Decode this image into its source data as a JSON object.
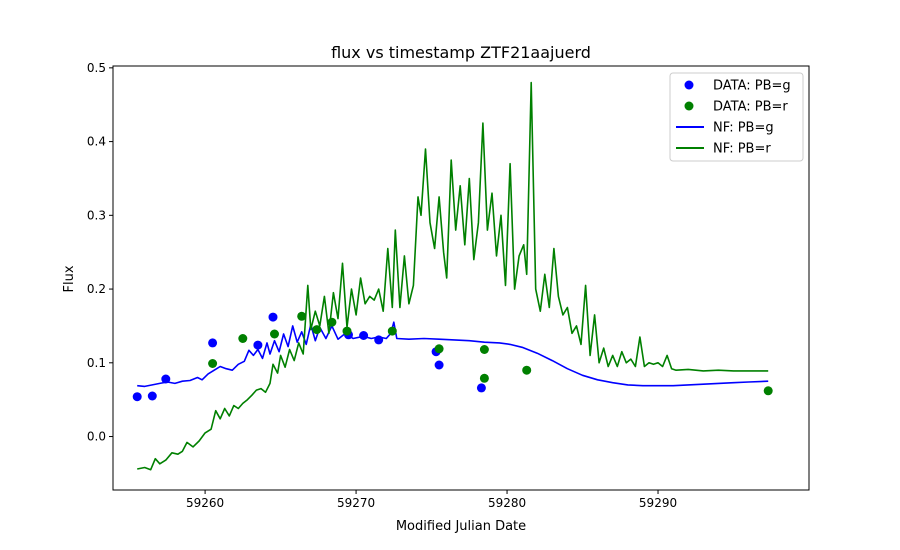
{
  "chart_data": {
    "type": "line",
    "title": "flux vs timestamp ZTF21aajuerd",
    "xlabel": "Modified Julian Date",
    "ylabel": "Flux",
    "xlim": [
      59253.9,
      59300.0
    ],
    "ylim": [
      -0.0725,
      0.5025
    ],
    "xticks": [
      59260,
      59270,
      59280,
      59290
    ],
    "yticks": [
      0.0,
      0.1,
      0.2,
      0.3,
      0.4,
      0.5
    ],
    "xtick_labels": [
      "59260",
      "59270",
      "59280",
      "59290"
    ],
    "ytick_labels": [
      "0.0",
      "0.1",
      "0.2",
      "0.3",
      "0.4",
      "0.5"
    ],
    "grid": false,
    "legend_position": "top-right",
    "series": [
      {
        "name": "DATA: PB=g",
        "kind": "scatter",
        "color": "#0000ff",
        "points": [
          [
            59255.5,
            0.054
          ],
          [
            59256.5,
            0.055
          ],
          [
            59257.4,
            0.078
          ],
          [
            59260.5,
            0.127
          ],
          [
            59263.5,
            0.124
          ],
          [
            59264.5,
            0.162
          ],
          [
            59269.5,
            0.138
          ],
          [
            59270.5,
            0.137
          ],
          [
            59271.5,
            0.131
          ],
          [
            59275.3,
            0.115
          ],
          [
            59275.5,
            0.097
          ],
          [
            59278.3,
            0.066
          ]
        ]
      },
      {
        "name": "DATA: PB=r",
        "kind": "scatter",
        "color": "#008000",
        "points": [
          [
            59260.5,
            0.099
          ],
          [
            59262.5,
            0.133
          ],
          [
            59264.6,
            0.139
          ],
          [
            59266.4,
            0.163
          ],
          [
            59267.4,
            0.145
          ],
          [
            59268.4,
            0.155
          ],
          [
            59269.4,
            0.143
          ],
          [
            59272.4,
            0.143
          ],
          [
            59275.5,
            0.119
          ],
          [
            59278.5,
            0.118
          ],
          [
            59278.5,
            0.079
          ],
          [
            59281.3,
            0.09
          ],
          [
            59297.3,
            0.062
          ]
        ]
      },
      {
        "name": "NF: PB=g",
        "kind": "line",
        "color": "#0000ff",
        "points": [
          [
            59255.5,
            0.069
          ],
          [
            59256.0,
            0.068
          ],
          [
            59256.5,
            0.07
          ],
          [
            59257.0,
            0.072
          ],
          [
            59257.5,
            0.074
          ],
          [
            59258.0,
            0.072
          ],
          [
            59258.5,
            0.075
          ],
          [
            59259.0,
            0.076
          ],
          [
            59259.5,
            0.08
          ],
          [
            59259.8,
            0.077
          ],
          [
            59260.2,
            0.085
          ],
          [
            59260.6,
            0.09
          ],
          [
            59261.0,
            0.095
          ],
          [
            59261.4,
            0.092
          ],
          [
            59261.8,
            0.09
          ],
          [
            59262.2,
            0.098
          ],
          [
            59262.6,
            0.102
          ],
          [
            59262.9,
            0.117
          ],
          [
            59263.2,
            0.11
          ],
          [
            59263.5,
            0.118
          ],
          [
            59263.8,
            0.106
          ],
          [
            59264.1,
            0.127
          ],
          [
            59264.3,
            0.112
          ],
          [
            59264.6,
            0.13
          ],
          [
            59264.9,
            0.115
          ],
          [
            59265.2,
            0.139
          ],
          [
            59265.5,
            0.122
          ],
          [
            59265.8,
            0.15
          ],
          [
            59266.1,
            0.128
          ],
          [
            59266.4,
            0.142
          ],
          [
            59266.7,
            0.125
          ],
          [
            59267.0,
            0.152
          ],
          [
            59267.3,
            0.13
          ],
          [
            59267.6,
            0.148
          ],
          [
            59268.0,
            0.133
          ],
          [
            59268.4,
            0.15
          ],
          [
            59268.8,
            0.132
          ],
          [
            59269.3,
            0.14
          ],
          [
            59269.8,
            0.133
          ],
          [
            59270.5,
            0.136
          ],
          [
            59271.0,
            0.133
          ],
          [
            59271.5,
            0.135
          ],
          [
            59272.0,
            0.133
          ],
          [
            59272.3,
            0.14
          ],
          [
            59272.5,
            0.155
          ],
          [
            59272.7,
            0.133
          ],
          [
            59273.5,
            0.132
          ],
          [
            59274.5,
            0.133
          ],
          [
            59275.5,
            0.132
          ],
          [
            59276.5,
            0.131
          ],
          [
            59277.5,
            0.13
          ],
          [
            59278.5,
            0.128
          ],
          [
            59279.5,
            0.127
          ],
          [
            59280.2,
            0.125
          ],
          [
            59281.0,
            0.121
          ],
          [
            59282.0,
            0.113
          ],
          [
            59283.0,
            0.103
          ],
          [
            59284.0,
            0.092
          ],
          [
            59285.0,
            0.083
          ],
          [
            59286.0,
            0.077
          ],
          [
            59287.0,
            0.073
          ],
          [
            59288.0,
            0.07
          ],
          [
            59289.0,
            0.069
          ],
          [
            59290.0,
            0.069
          ],
          [
            59291.0,
            0.069
          ],
          [
            59292.0,
            0.07
          ],
          [
            59293.0,
            0.071
          ],
          [
            59294.0,
            0.072
          ],
          [
            59295.0,
            0.073
          ],
          [
            59296.0,
            0.074
          ],
          [
            59297.3,
            0.075
          ]
        ]
      },
      {
        "name": "NF: PB=r",
        "kind": "line",
        "color": "#008000",
        "points": [
          [
            59255.5,
            -0.044
          ],
          [
            59256.0,
            -0.042
          ],
          [
            59256.4,
            -0.045
          ],
          [
            59256.7,
            -0.03
          ],
          [
            59257.0,
            -0.037
          ],
          [
            59257.4,
            -0.032
          ],
          [
            59257.8,
            -0.022
          ],
          [
            59258.2,
            -0.024
          ],
          [
            59258.5,
            -0.02
          ],
          [
            59258.8,
            -0.008
          ],
          [
            59259.2,
            -0.014
          ],
          [
            59259.6,
            -0.006
          ],
          [
            59260.0,
            0.005
          ],
          [
            59260.4,
            0.01
          ],
          [
            59260.7,
            0.035
          ],
          [
            59261.0,
            0.024
          ],
          [
            59261.3,
            0.038
          ],
          [
            59261.6,
            0.028
          ],
          [
            59261.9,
            0.042
          ],
          [
            59262.2,
            0.038
          ],
          [
            59262.5,
            0.045
          ],
          [
            59262.8,
            0.05
          ],
          [
            59263.1,
            0.056
          ],
          [
            59263.4,
            0.063
          ],
          [
            59263.7,
            0.065
          ],
          [
            59264.0,
            0.06
          ],
          [
            59264.3,
            0.072
          ],
          [
            59264.5,
            0.098
          ],
          [
            59264.8,
            0.086
          ],
          [
            59265.0,
            0.11
          ],
          [
            59265.3,
            0.094
          ],
          [
            59265.6,
            0.118
          ],
          [
            59265.9,
            0.103
          ],
          [
            59266.2,
            0.127
          ],
          [
            59266.5,
            0.112
          ],
          [
            59266.8,
            0.205
          ],
          [
            59267.0,
            0.145
          ],
          [
            59267.3,
            0.17
          ],
          [
            59267.6,
            0.15
          ],
          [
            59267.9,
            0.19
          ],
          [
            59268.2,
            0.14
          ],
          [
            59268.5,
            0.195
          ],
          [
            59268.8,
            0.16
          ],
          [
            59269.1,
            0.235
          ],
          [
            59269.4,
            0.148
          ],
          [
            59269.7,
            0.2
          ],
          [
            59270.0,
            0.165
          ],
          [
            59270.3,
            0.215
          ],
          [
            59270.6,
            0.18
          ],
          [
            59270.9,
            0.19
          ],
          [
            59271.2,
            0.185
          ],
          [
            59271.5,
            0.2
          ],
          [
            59271.8,
            0.17
          ],
          [
            59272.1,
            0.255
          ],
          [
            59272.4,
            0.175
          ],
          [
            59272.6,
            0.28
          ],
          [
            59272.9,
            0.175
          ],
          [
            59273.2,
            0.245
          ],
          [
            59273.5,
            0.18
          ],
          [
            59273.8,
            0.205
          ],
          [
            59274.1,
            0.325
          ],
          [
            59274.3,
            0.3
          ],
          [
            59274.6,
            0.39
          ],
          [
            59274.9,
            0.29
          ],
          [
            59275.2,
            0.255
          ],
          [
            59275.5,
            0.325
          ],
          [
            59275.8,
            0.25
          ],
          [
            59276.0,
            0.215
          ],
          [
            59276.3,
            0.375
          ],
          [
            59276.6,
            0.28
          ],
          [
            59276.9,
            0.34
          ],
          [
            59277.2,
            0.26
          ],
          [
            59277.5,
            0.35
          ],
          [
            59277.8,
            0.24
          ],
          [
            59278.1,
            0.29
          ],
          [
            59278.4,
            0.425
          ],
          [
            59278.7,
            0.28
          ],
          [
            59279.0,
            0.33
          ],
          [
            59279.3,
            0.245
          ],
          [
            59279.6,
            0.3
          ],
          [
            59279.9,
            0.205
          ],
          [
            59280.2,
            0.37
          ],
          [
            59280.5,
            0.2
          ],
          [
            59280.8,
            0.245
          ],
          [
            59281.1,
            0.26
          ],
          [
            59281.3,
            0.22
          ],
          [
            59281.6,
            0.48
          ],
          [
            59281.9,
            0.2
          ],
          [
            59282.2,
            0.17
          ],
          [
            59282.5,
            0.22
          ],
          [
            59282.8,
            0.175
          ],
          [
            59283.1,
            0.255
          ],
          [
            59283.4,
            0.19
          ],
          [
            59283.7,
            0.165
          ],
          [
            59284.0,
            0.175
          ],
          [
            59284.3,
            0.14
          ],
          [
            59284.6,
            0.15
          ],
          [
            59284.9,
            0.125
          ],
          [
            59285.2,
            0.205
          ],
          [
            59285.5,
            0.11
          ],
          [
            59285.8,
            0.165
          ],
          [
            59286.1,
            0.1
          ],
          [
            59286.4,
            0.12
          ],
          [
            59286.7,
            0.095
          ],
          [
            59287.0,
            0.11
          ],
          [
            59287.3,
            0.095
          ],
          [
            59287.6,
            0.115
          ],
          [
            59287.9,
            0.1
          ],
          [
            59288.2,
            0.105
          ],
          [
            59288.5,
            0.095
          ],
          [
            59288.8,
            0.135
          ],
          [
            59289.1,
            0.095
          ],
          [
            59289.4,
            0.1
          ],
          [
            59289.7,
            0.098
          ],
          [
            59290.0,
            0.1
          ],
          [
            59290.3,
            0.095
          ],
          [
            59290.6,
            0.11
          ],
          [
            59290.9,
            0.092
          ],
          [
            59291.2,
            0.09
          ],
          [
            59292.0,
            0.091
          ],
          [
            59293.0,
            0.089
          ],
          [
            59294.0,
            0.09
          ],
          [
            59295.0,
            0.089
          ],
          [
            59296.0,
            0.089
          ],
          [
            59297.3,
            0.089
          ]
        ]
      }
    ]
  }
}
